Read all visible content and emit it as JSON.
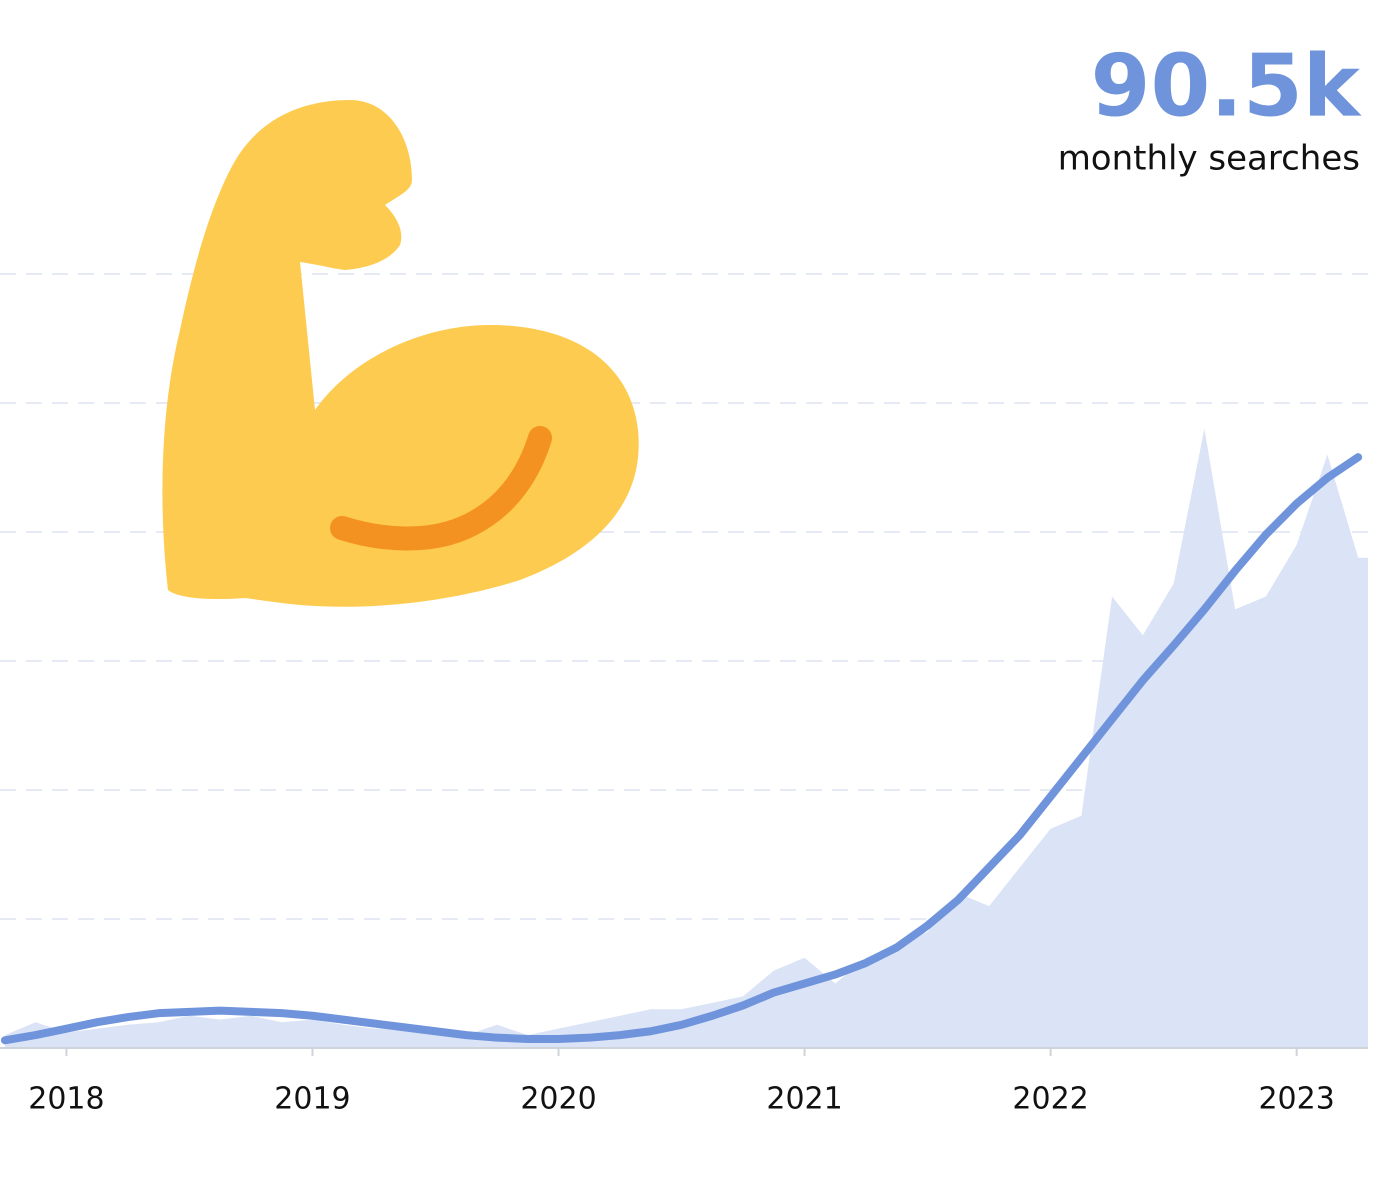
{
  "chart_data": {
    "type": "trend-area",
    "headline": "90.5k",
    "subtitle": "monthly searches",
    "x": [
      2017.75,
      2017.875,
      2018,
      2018.125,
      2018.25,
      2018.375,
      2018.5,
      2018.625,
      2018.75,
      2018.875,
      2019,
      2019.125,
      2019.25,
      2019.375,
      2019.5,
      2019.625,
      2019.75,
      2019.875,
      2020,
      2020.125,
      2020.25,
      2020.375,
      2020.5,
      2020.625,
      2020.75,
      2020.875,
      2021,
      2021.125,
      2021.25,
      2021.375,
      2021.5,
      2021.625,
      2021.75,
      2021.875,
      2022,
      2022.125,
      2022.25,
      2022.375,
      2022.5,
      2022.625,
      2022.75,
      2022.875,
      2023,
      2023.125,
      2023.25
    ],
    "series": [
      {
        "color": "#dbe3f6",
        "values": [
          0.1,
          0.2,
          0.12,
          0.15,
          0.18,
          0.2,
          0.25,
          0.22,
          0.25,
          0.2,
          0.22,
          0.18,
          0.15,
          0.15,
          0.12,
          0.1,
          0.18,
          0.1,
          0.15,
          0.2,
          0.25,
          0.3,
          0.3,
          0.35,
          0.4,
          0.6,
          0.7,
          0.5,
          0.7,
          0.8,
          0.9,
          1.2,
          1.1,
          1.4,
          1.7,
          1.8,
          3.5,
          3.2,
          3.6,
          4.8,
          3.4,
          3.5,
          3.9,
          4.6,
          3.8
        ]
      },
      {
        "color": "#6f94dc",
        "values": [
          0.06,
          0.1,
          0.15,
          0.2,
          0.24,
          0.27,
          0.28,
          0.29,
          0.28,
          0.27,
          0.25,
          0.22,
          0.19,
          0.16,
          0.13,
          0.1,
          0.08,
          0.07,
          0.07,
          0.08,
          0.1,
          0.13,
          0.18,
          0.25,
          0.33,
          0.43,
          0.5,
          0.57,
          0.66,
          0.78,
          0.95,
          1.15,
          1.4,
          1.65,
          1.95,
          2.25,
          2.55,
          2.85,
          3.12,
          3.4,
          3.7,
          3.98,
          4.22,
          4.42,
          4.58
        ]
      }
    ],
    "xlim": [
      2017.73,
      2023.29
    ],
    "xticks": [
      2018,
      2019,
      2020,
      2021,
      2022,
      2023
    ],
    "ylim": [
      0,
      8
    ],
    "yticks": [
      1,
      2,
      3,
      4,
      5,
      6
    ],
    "grid": true
  }
}
